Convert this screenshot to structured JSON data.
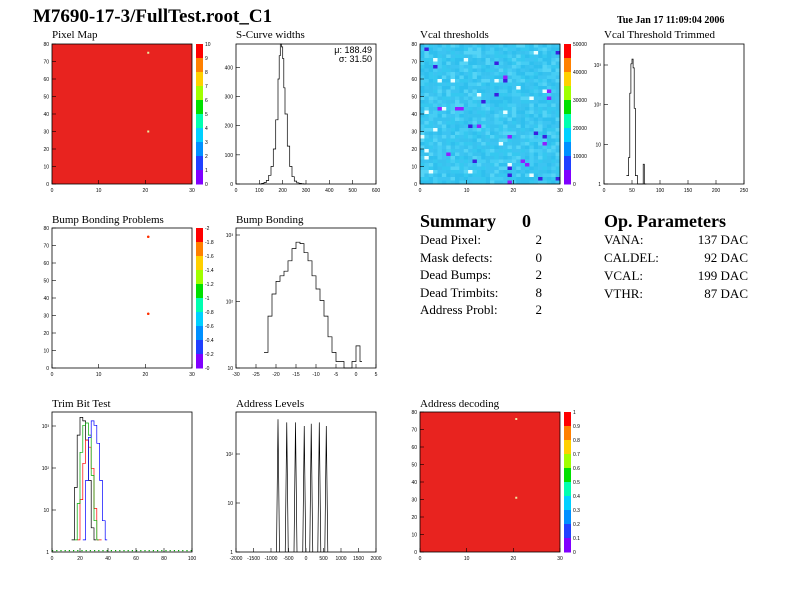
{
  "window_title": "M7690-17-3/FullTest.root_C1",
  "timestamp": "Tue Jan 17 11:09:04 2006",
  "colors": {
    "red_map": "#e8231f",
    "cyan_map": "#35c8f0",
    "hist_line": "#000000"
  },
  "panels": {
    "pixel_map": {
      "title": "Pixel Map",
      "xticks": [
        "0",
        "10",
        "20",
        "30"
      ],
      "yticks": [
        "0",
        "10",
        "20",
        "30",
        "40",
        "50",
        "60",
        "70",
        "80"
      ],
      "zticks": [
        "0",
        "1",
        "2",
        "3",
        "4",
        "5",
        "6",
        "7",
        "8",
        "9",
        "10"
      ]
    },
    "scurve": {
      "title": "S-Curve widths",
      "mu": "μ: 188.49",
      "sigma": "σ:  31.50",
      "xticks": [
        "0",
        "100",
        "200",
        "300",
        "400",
        "500",
        "600"
      ],
      "yticks": [
        "0",
        "100",
        "200",
        "300",
        "400"
      ]
    },
    "vcal_thr": {
      "title": "Vcal thresholds",
      "xticks": [
        "0",
        "10",
        "20",
        "30"
      ],
      "yticks": [
        "0",
        "10",
        "20",
        "30",
        "40",
        "50",
        "60",
        "70",
        "80"
      ],
      "zticks": [
        "0",
        "10000",
        "20000",
        "30000",
        "40000",
        "50000"
      ]
    },
    "vcal_trim": {
      "title": "Vcal Threshold Trimmed",
      "xticks": [
        "0",
        "50",
        "100",
        "150",
        "200",
        "250"
      ],
      "yticks": [
        "1",
        "10",
        "10²",
        "10³"
      ]
    },
    "bump_problems": {
      "title": "Bump Bonding Problems",
      "xticks": [
        "0",
        "10",
        "20",
        "30"
      ],
      "yticks": [
        "0",
        "10",
        "20",
        "30",
        "40",
        "50",
        "60",
        "70",
        "80"
      ],
      "zticks": [
        "-0",
        "-0.2",
        "-0.4",
        "-0.6",
        "-0.8",
        "-1",
        "-1.2",
        "-1.4",
        "-1.6",
        "-1.8",
        "-2"
      ]
    },
    "bump_bonding": {
      "title": "Bump Bonding",
      "xticks": [
        "-30",
        "-25",
        "-20",
        "-15",
        "-10",
        "-5",
        "0",
        "5"
      ],
      "yticks": [
        "10",
        "10²",
        "10³"
      ]
    },
    "trim_bit": {
      "title": "Trim Bit Test",
      "xticks": [
        "0",
        "20",
        "40",
        "60",
        "80",
        "100"
      ],
      "yticks": [
        "1",
        "10",
        "10²",
        "10³"
      ]
    },
    "address_levels": {
      "title": "Address Levels",
      "xticks": [
        "-2000",
        "-1500",
        "-1000",
        "-500",
        "0",
        "500",
        "1000",
        "1500",
        "2000"
      ],
      "yticks": [
        "1",
        "10",
        "10²"
      ]
    },
    "address_decoding": {
      "title": "Address decoding",
      "xticks": [
        "0",
        "10",
        "20",
        "30"
      ],
      "yticks": [
        "0",
        "10",
        "20",
        "30",
        "40",
        "50",
        "60",
        "70",
        "80"
      ],
      "zticks": [
        "0",
        "0.1",
        "0.2",
        "0.3",
        "0.4",
        "0.5",
        "0.6",
        "0.7",
        "0.8",
        "0.9",
        "1"
      ]
    }
  },
  "summary": {
    "heading": "Summary",
    "heading_value": "0",
    "rows": [
      {
        "label": "Dead Pixel:",
        "value": "2"
      },
      {
        "label": "Mask defects:",
        "value": "0"
      },
      {
        "label": "Dead Bumps:",
        "value": "2"
      },
      {
        "label": "Dead Trimbits:",
        "value": "8"
      },
      {
        "label": "Address Probl:",
        "value": "2"
      }
    ]
  },
  "op_parameters": {
    "heading": "Op. Parameters",
    "rows": [
      {
        "label": "VANA:",
        "value": "137 DAC"
      },
      {
        "label": "CALDEL:",
        "value": "92 DAC"
      },
      {
        "label": "VCAL:",
        "value": "199 DAC"
      },
      {
        "label": "VTHR:",
        "value": "87 DAC"
      }
    ]
  },
  "chart_data": [
    {
      "type": "heatmap",
      "title": "Pixel Map",
      "xlim": [
        0,
        32
      ],
      "ylim": [
        0,
        80
      ],
      "zlim": [
        0,
        10
      ],
      "fill_value": 10,
      "hot_pixels": [
        {
          "x": 22,
          "y": 75
        },
        {
          "x": 22,
          "y": 30
        }
      ]
    },
    {
      "type": "line",
      "title": "S-Curve widths",
      "xlim": [
        0,
        600
      ],
      "ylim": [
        0,
        480
      ],
      "stats": {
        "mean": 188.49,
        "sigma": 31.5
      },
      "x": [
        100,
        110,
        120,
        130,
        140,
        150,
        160,
        170,
        180,
        185,
        190,
        195,
        200,
        205,
        210,
        220,
        230,
        240,
        250,
        260,
        270,
        280,
        290
      ],
      "y": [
        0,
        2,
        5,
        12,
        30,
        60,
        120,
        220,
        360,
        440,
        480,
        470,
        430,
        330,
        240,
        130,
        60,
        25,
        10,
        4,
        2,
        1,
        0
      ]
    },
    {
      "type": "heatmap",
      "title": "Vcal thresholds",
      "xlim": [
        0,
        32
      ],
      "ylim": [
        0,
        80
      ],
      "zlim": [
        0,
        55000
      ],
      "fill_value": 22000
    },
    {
      "type": "line",
      "title": "Vcal Threshold Trimmed",
      "xlim": [
        0,
        250
      ],
      "ylim": [
        1,
        3000
      ],
      "log_y": true,
      "x": [
        40,
        44,
        46,
        48,
        50,
        52,
        54,
        56,
        60,
        70,
        72
      ],
      "y": [
        1,
        3,
        150,
        900,
        1200,
        700,
        60,
        1,
        0,
        2,
        0
      ]
    },
    {
      "type": "heatmap",
      "title": "Bump Bonding Problems",
      "xlim": [
        0,
        32
      ],
      "ylim": [
        0,
        80
      ],
      "zlim": [
        -2,
        0
      ],
      "points": [
        {
          "x": 22,
          "y": 75
        },
        {
          "x": 22,
          "y": 31
        }
      ]
    },
    {
      "type": "line",
      "title": "Bump Bonding",
      "xlim": [
        -30,
        5
      ],
      "ylim": [
        3,
        1500
      ],
      "log_y": true,
      "x": [
        -23,
        -22,
        -21,
        -20,
        -19,
        -18,
        -17,
        -16,
        -15,
        -14,
        -13,
        -12,
        -11,
        -10,
        -9,
        -8,
        -7,
        -6,
        -5,
        -4,
        -3,
        -2,
        -1,
        0,
        1
      ],
      "y": [
        6,
        30,
        80,
        140,
        180,
        220,
        350,
        600,
        800,
        750,
        500,
        350,
        180,
        100,
        60,
        30,
        12,
        6,
        4,
        4,
        0,
        0,
        4,
        8,
        4
      ]
    },
    {
      "type": "line",
      "title": "Trim Bit Test",
      "xlim": [
        0,
        100
      ],
      "ylim": [
        1,
        1500
      ],
      "log_y": true,
      "series": [
        {
          "color": "#000000",
          "x": [
            14,
            16,
            18,
            20,
            22,
            24,
            26,
            28,
            30
          ],
          "y": [
            1,
            20,
            400,
            1100,
            900,
            300,
            30,
            2,
            1
          ]
        },
        {
          "color": "#ff0000",
          "x": [
            18,
            20,
            22,
            24,
            26,
            28,
            30,
            32,
            34
          ],
          "y": [
            1,
            10,
            80,
            300,
            200,
            60,
            6,
            1,
            1
          ]
        },
        {
          "color": "#00aa00",
          "x": [
            16,
            18,
            20,
            22,
            24,
            26,
            28,
            30,
            32
          ],
          "y": [
            1,
            8,
            150,
            700,
            800,
            400,
            40,
            3,
            1
          ]
        },
        {
          "color": "#0000ff",
          "x": [
            22,
            24,
            26,
            28,
            30,
            32,
            34,
            36,
            38
          ],
          "y": [
            1,
            30,
            350,
            900,
            700,
            250,
            30,
            3,
            1
          ]
        }
      ]
    },
    {
      "type": "bar",
      "title": "Address Levels",
      "xlim": [
        -2000,
        2000
      ],
      "ylim": [
        1,
        500
      ],
      "log_y": true,
      "x": [
        -800,
        -550,
        -300,
        -50,
        150,
        380,
        580
      ],
      "values": [
        350,
        300,
        300,
        250,
        280,
        300,
        250
      ]
    },
    {
      "type": "heatmap",
      "title": "Address decoding",
      "xlim": [
        0,
        32
      ],
      "ylim": [
        0,
        80
      ],
      "zlim": [
        0,
        1
      ],
      "fill_value": 1,
      "hot_pixels": [
        {
          "x": 22,
          "y": 76
        },
        {
          "x": 22,
          "y": 31
        }
      ]
    }
  ]
}
